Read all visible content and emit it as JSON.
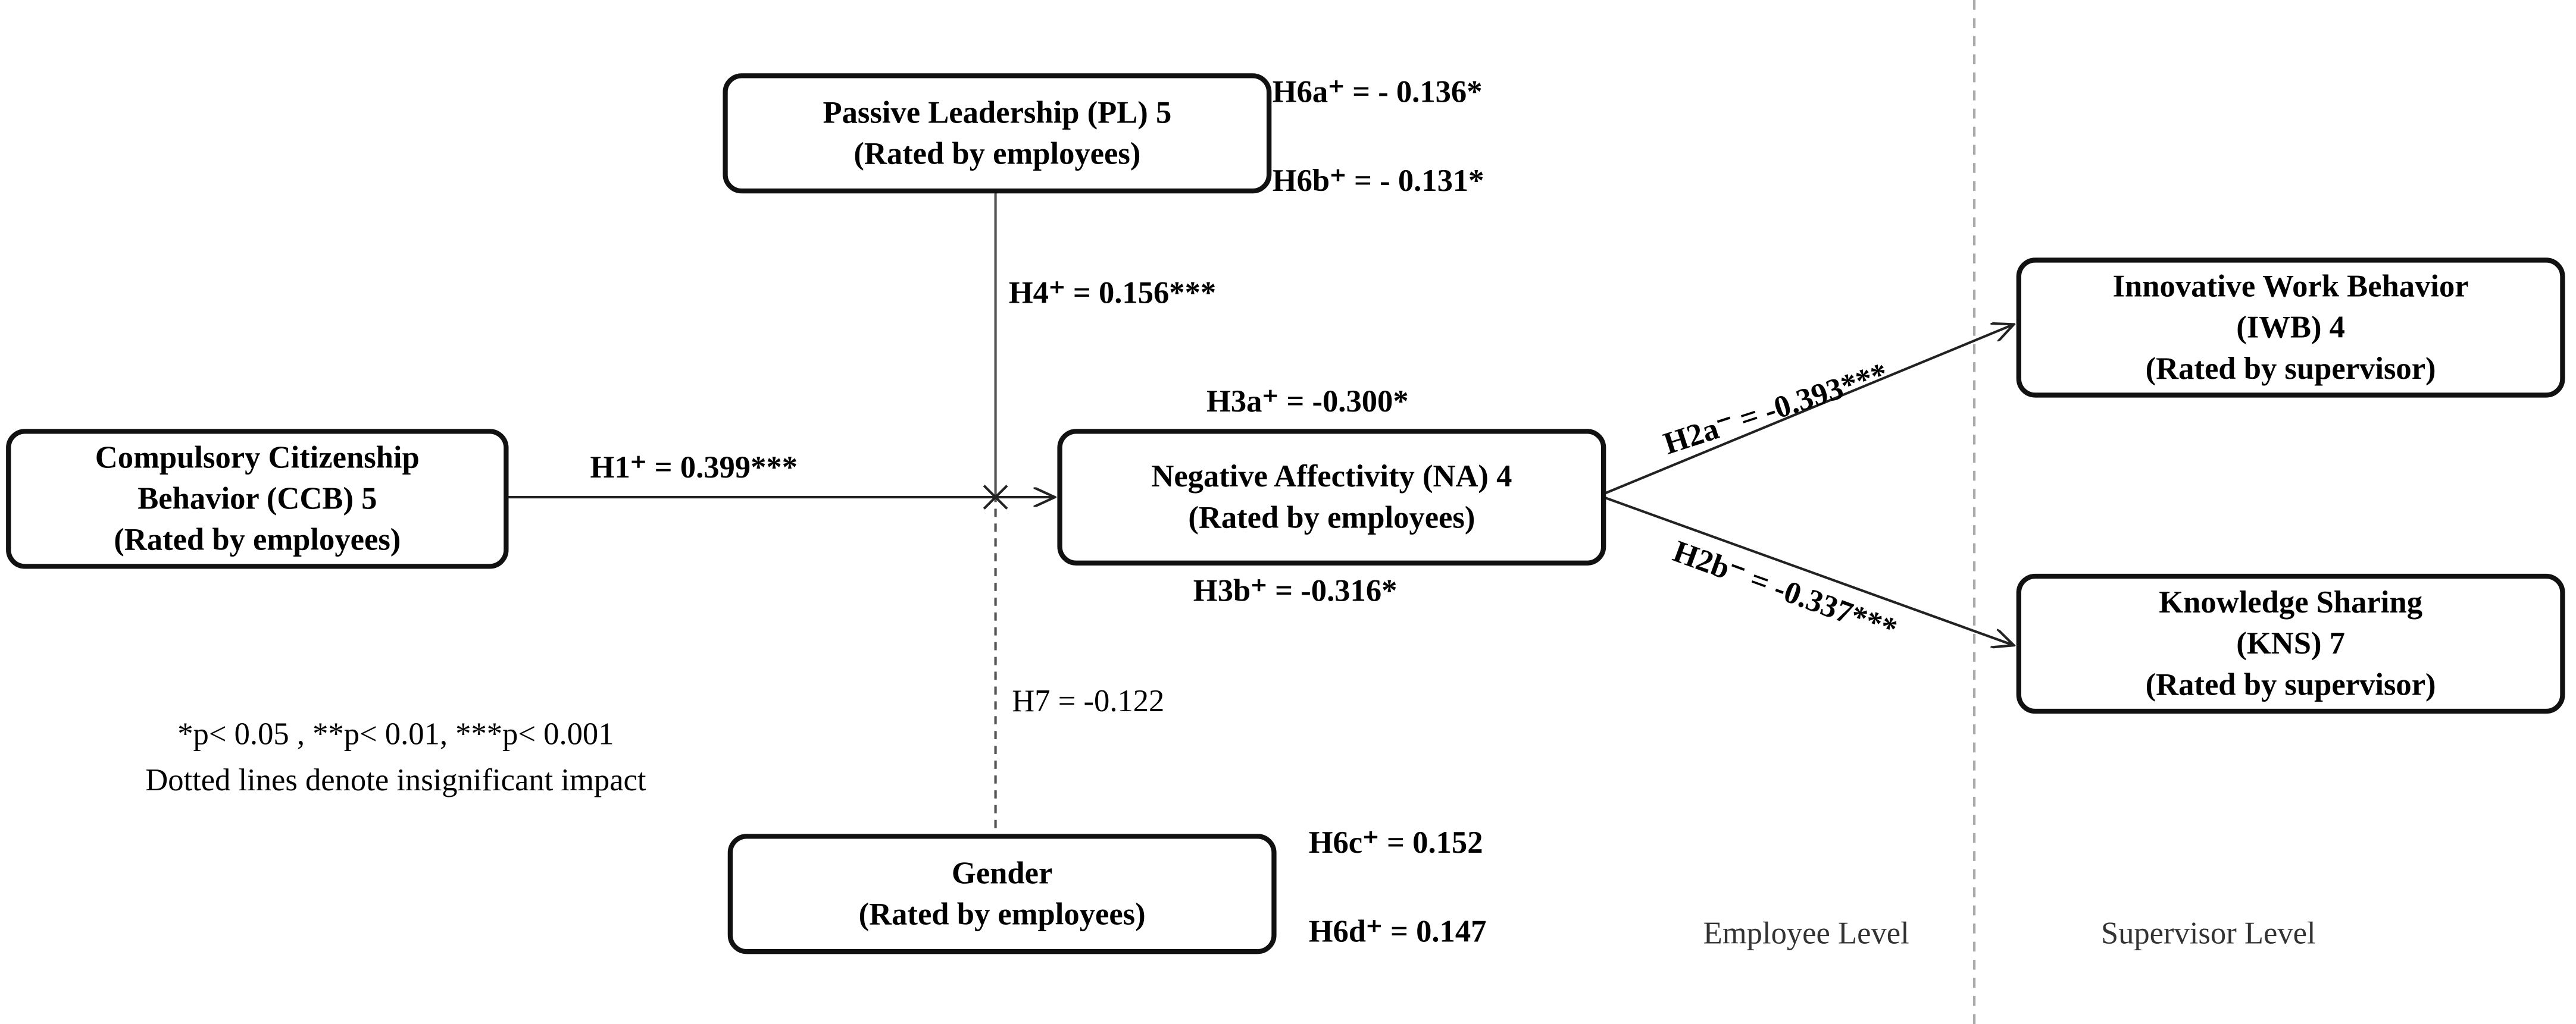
{
  "nodes": [
    {
      "lines": [
        "Passive Leadership (PL) 5",
        "(Rated by employees)"
      ]
    },
    {
      "lines": [
        "Compulsory Citizenship",
        "Behavior (CCB) 5",
        "(Rated by employees)"
      ]
    },
    {
      "lines": [
        "Negative Affectivity (NA) 4",
        "(Rated by employees)"
      ]
    },
    {
      "lines": [
        "Innovative Work Behavior",
        "(IWB) 4",
        "(Rated by supervisor)"
      ]
    },
    {
      "lines": [
        "Knowledge Sharing",
        "(KNS) 7",
        "(Rated by supervisor)"
      ]
    },
    {
      "lines": [
        "Gender",
        "(Rated by employees)"
      ]
    }
  ],
  "edge_labels": [
    "H6a⁺ = - 0.136*",
    "H6b⁺ = - 0.131*",
    "H4⁺ = 0.156***",
    "H1⁺ = 0.399***",
    "H3a⁺ = -0.300*",
    "H3b⁺ = -0.316*",
    "H2a⁻ = -0.393***",
    "H2b⁻ = -0.337***",
    "H7 = -0.122",
    "H6c⁺ =  0.152",
    "H6d⁺ =  0.147"
  ],
  "notes": [
    "*p< 0.05 , **p< 0.01, ***p< 0.001",
    "Dotted lines denote insignificant impact"
  ],
  "levels": [
    "Employee Level",
    "Supervisor Level"
  ]
}
